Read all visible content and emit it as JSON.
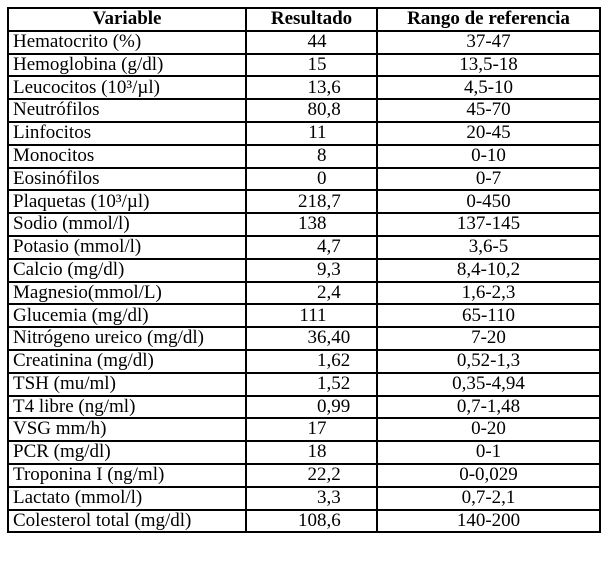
{
  "table": {
    "columns": [
      {
        "key": "variable",
        "label": "Variable"
      },
      {
        "key": "resultado",
        "label": "Resultado"
      },
      {
        "key": "rango",
        "label": "Rango de referencia"
      }
    ],
    "rows": [
      {
        "variable": "Hematocrito (%)",
        "resultado": "44",
        "rango": "37-47"
      },
      {
        "variable": "Hemoglobina (g/dl)",
        "resultado": "15",
        "rango": "13,5-18"
      },
      {
        "variable": "Leucocitos (10³/µl)",
        "resultado": "13,6",
        "rango": "4,5-10"
      },
      {
        "variable": "Neutrófilos",
        "resultado": "80,8",
        "rango": "45-70"
      },
      {
        "variable": "Linfocitos",
        "resultado": "11",
        "rango": "20-45"
      },
      {
        "variable": "Monocitos",
        "resultado": "8",
        "rango": "0-10"
      },
      {
        "variable": "Eosinófilos",
        "resultado": "0",
        "rango": "0-7"
      },
      {
        "variable": "Plaquetas (10³/µl)",
        "resultado": "218,7",
        "rango": "0-450"
      },
      {
        "variable": "Sodio (mmol/l)",
        "resultado": "138",
        "rango": "137-145"
      },
      {
        "variable": "Potasio (mmol/l)",
        "resultado": "4,7",
        "rango": "3,6-5"
      },
      {
        "variable": "Calcio (mg/dl)",
        "resultado": "9,3",
        "rango": "8,4-10,2"
      },
      {
        "variable": "Magnesio(mmol/L)",
        "resultado": "2,4",
        "rango": "1,6-2,3"
      },
      {
        "variable": "Glucemia (mg/dl)",
        "resultado": "111",
        "rango": "65-110"
      },
      {
        "variable": "Nitrógeno ureico (mg/dl)",
        "resultado": "36,40",
        "rango": "7-20"
      },
      {
        "variable": "Creatinina (mg/dl)",
        "resultado": "1,62",
        "rango": "0,52-1,3"
      },
      {
        "variable": "TSH (mu/ml)",
        "resultado": "1,52",
        "rango": "0,35-4,94"
      },
      {
        "variable": "T4 libre (ng/ml)",
        "resultado": "0,99",
        "rango": "0,7-1,48"
      },
      {
        "variable": "VSG mm/h)",
        "resultado": "17",
        "rango": "0-20"
      },
      {
        "variable": "PCR (mg/dl)",
        "resultado": "18",
        "rango": "0-1"
      },
      {
        "variable": "Troponina I (ng/ml)",
        "resultado": "22,2",
        "rango": "0-0,029"
      },
      {
        "variable": "Lactato (mmol/l)",
        "resultado": "3,3",
        "rango": "0,7-2,1"
      },
      {
        "variable": "Colesterol total (mg/dl)",
        "resultado": "108,6",
        "rango": "140-200"
      }
    ],
    "styles": {
      "border_color": "#000000",
      "text_color": "#000000",
      "background": "#ffffff"
    }
  }
}
